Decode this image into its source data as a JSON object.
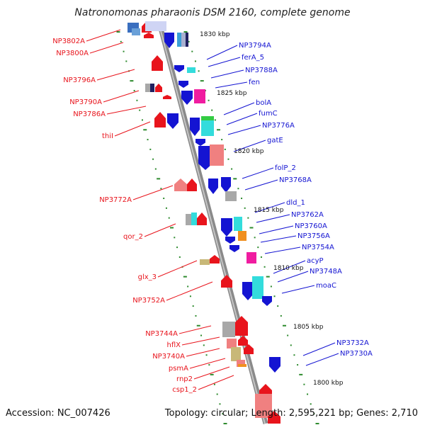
{
  "title": "Natronomonas pharaonis DSM 2160, complete genome",
  "footer": {
    "accession": "Accession: NC_007426",
    "summary": "Topology: circular; Length: 2,595,221 bp; Genes: 2,710"
  },
  "colors": {
    "forward_gene": "#e8141c",
    "reverse_gene": "#1414d2",
    "backbone": "#8a8a8a",
    "tick": "#2e8b2e"
  },
  "kbp_marks": [
    "1830 kbp",
    "1825 kbp",
    "1820 kbp",
    "1815 kbp",
    "1810 kbp",
    "1805 kbp",
    "1800 kbp"
  ],
  "left_labels": [
    "NP3802A",
    "NP3800A",
    "NP3796A",
    "NP3790A",
    "NP3786A",
    "thiI",
    "NP3772A",
    "qor_2",
    "glx_3",
    "NP3752A",
    "NP3744A",
    "hflX",
    "NP3740A",
    "psmA",
    "rnp2",
    "csp1_2"
  ],
  "right_labels": [
    "NP3794A",
    "ferA_5",
    "NP3788A",
    "fen",
    "bolA",
    "fumC",
    "NP3776A",
    "gatE",
    "folP_2",
    "NP3768A",
    "dld_1",
    "NP3762A",
    "NP3760A",
    "NP3756A",
    "NP3754A",
    "acyP",
    "NP3748A",
    "moaC",
    "NP3732A",
    "NP3730A"
  ]
}
